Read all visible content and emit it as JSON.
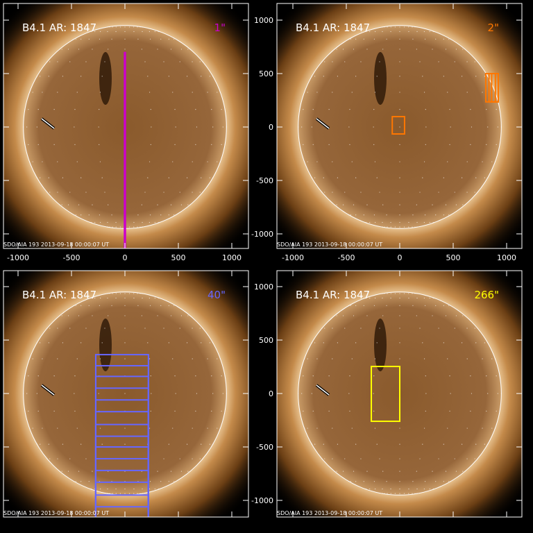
{
  "figure": {
    "label": "B4.1 AR: 1847",
    "footer": "SDO/AIA 193  2013-09-18 00:00:07 UT",
    "x_ticks": [
      -1000,
      -500,
      0,
      500,
      1000
    ],
    "y_ticks": [
      1000,
      500,
      0,
      -500,
      -1000
    ],
    "xlim": [
      -1130,
      1160
    ],
    "ylim": [
      -1130,
      1160
    ],
    "solar_radius_arcsec": 950,
    "limb_arrow_color": "#ffffff"
  },
  "panels": [
    {
      "label": "B4.1 AR: 1847",
      "resolution": "1\"",
      "color": "#cc00cc",
      "show_x_labels": true,
      "show_y_labels": false,
      "boxes": [
        {
          "x0": -8,
          "x1": 8,
          "y0": -1160,
          "y1": 700
        }
      ]
    },
    {
      "label": "B4.1 AR: 1847",
      "resolution": "2\"",
      "color": "#ff7700",
      "show_x_labels": true,
      "show_y_labels": true,
      "boxes": [
        {
          "x0": -70,
          "x1": 45,
          "y0": -65,
          "y1": 97
        },
        {
          "x0": 805,
          "x1": 922,
          "y0": 235,
          "y1": 500
        },
        {
          "x0": 835,
          "x1": 895,
          "y0": 235,
          "y1": 500
        },
        {
          "x0": 860,
          "x1": 922,
          "y0": 235,
          "y1": 500
        }
      ]
    },
    {
      "label": "B4.1 AR: 1847",
      "resolution": "40\"",
      "color": "#6666ff",
      "show_x_labels": false,
      "show_y_labels": false,
      "boxes": [
        {
          "x0": -273,
          "x1": 220,
          "y0": -1175,
          "y1": 364
        },
        {
          "x0": -273,
          "x1": 220,
          "y0": -1175,
          "y1": 260
        },
        {
          "x0": -273,
          "x1": 220,
          "y0": -1175,
          "y1": 160
        },
        {
          "x0": -273,
          "x1": 220,
          "y0": -1175,
          "y1": 50
        },
        {
          "x0": -273,
          "x1": 220,
          "y0": -1175,
          "y1": -60
        },
        {
          "x0": -273,
          "x1": 220,
          "y0": -1175,
          "y1": -170
        },
        {
          "x0": -273,
          "x1": 220,
          "y0": -1175,
          "y1": -290
        },
        {
          "x0": -273,
          "x1": 220,
          "y0": -1175,
          "y1": -400
        },
        {
          "x0": -273,
          "x1": 220,
          "y0": -1175,
          "y1": -500
        },
        {
          "x0": -273,
          "x1": 220,
          "y0": -1175,
          "y1": -610
        },
        {
          "x0": -273,
          "x1": 220,
          "y0": -1175,
          "y1": -720
        },
        {
          "x0": -273,
          "x1": 220,
          "y0": -1175,
          "y1": -830
        },
        {
          "x0": -273,
          "x1": 220,
          "y0": -1175,
          "y1": -950
        },
        {
          "x0": -273,
          "x1": 220,
          "y0": -1175,
          "y1": -1060
        }
      ]
    },
    {
      "label": "B4.1 AR: 1847",
      "resolution": "266\"",
      "color": "#ffff00",
      "show_x_labels": false,
      "show_y_labels": true,
      "boxes": [
        {
          "x0": -266,
          "x1": 0,
          "y0": -260,
          "y1": 253
        }
      ]
    }
  ]
}
